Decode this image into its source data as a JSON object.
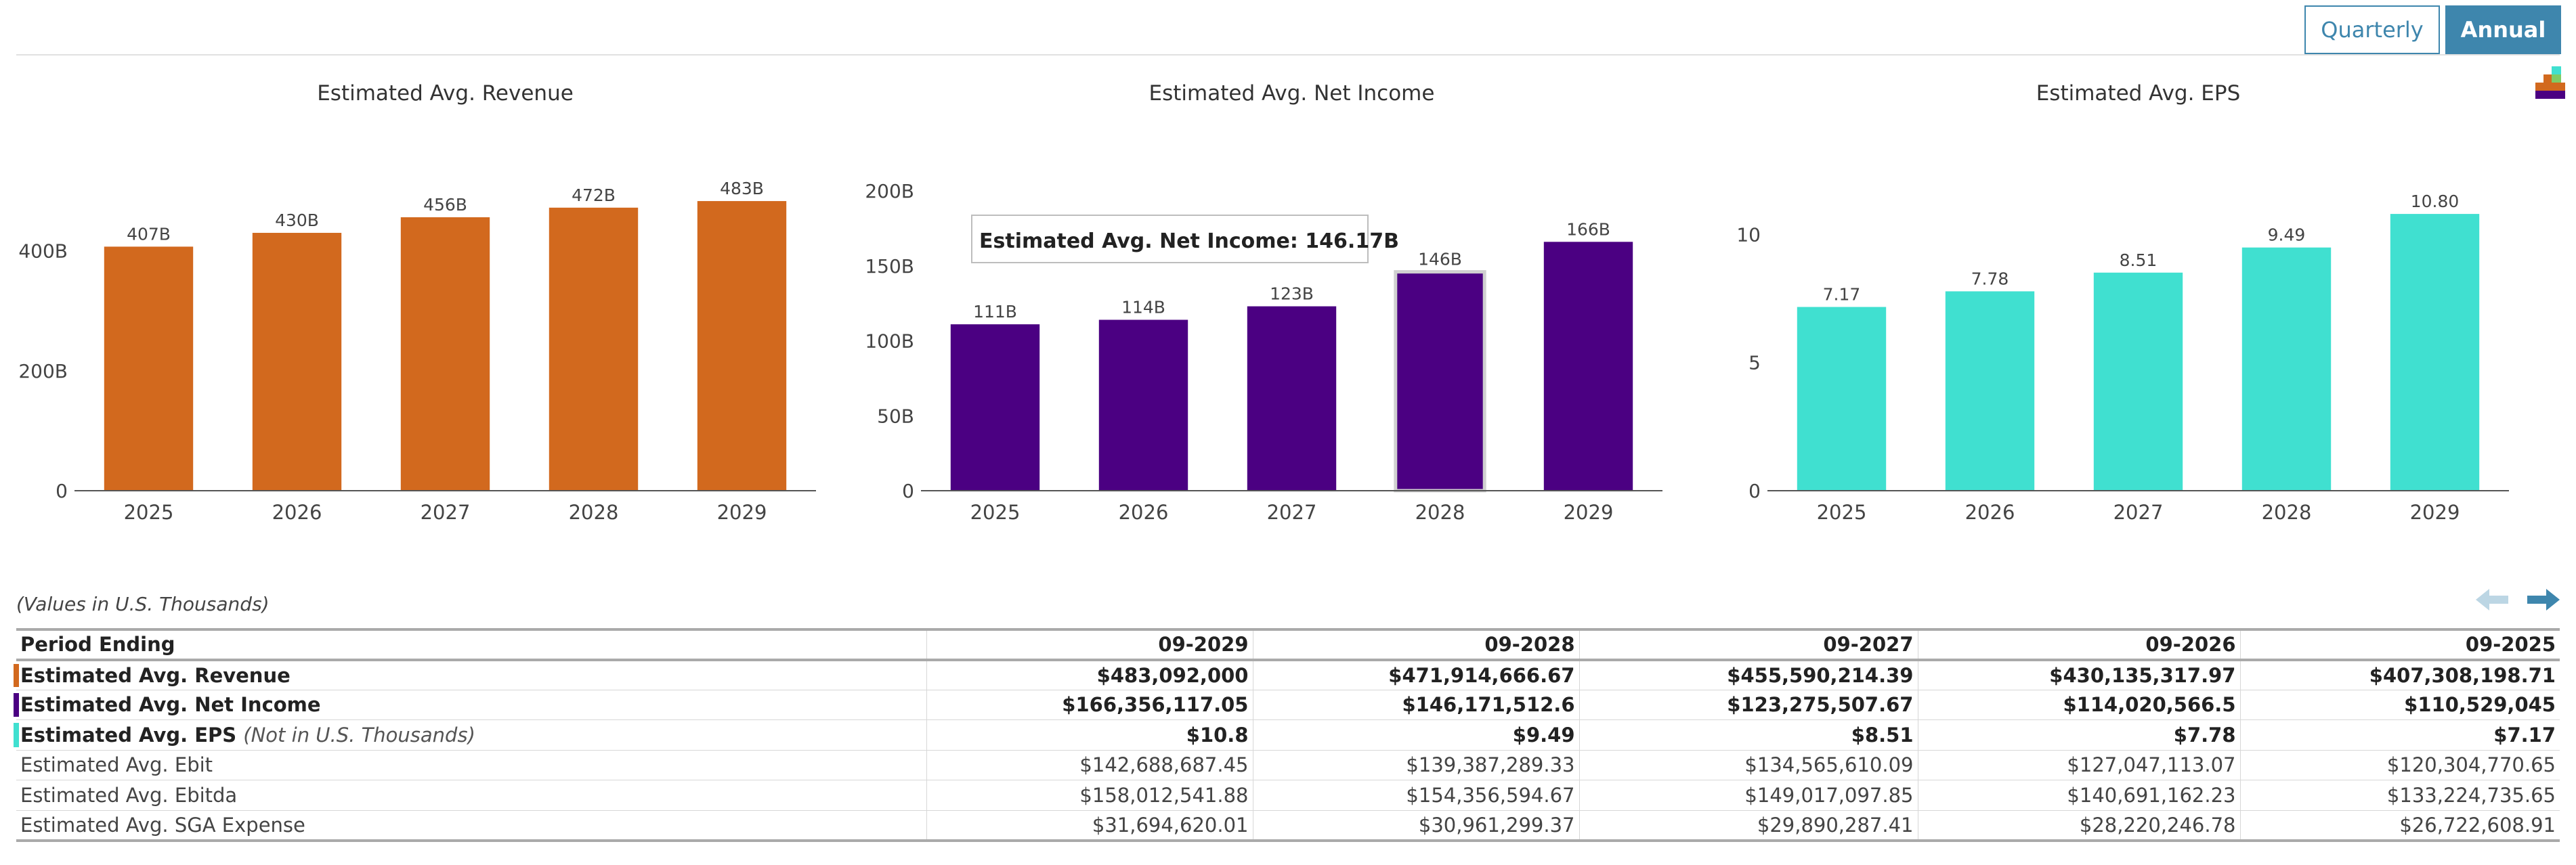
{
  "toggle": {
    "quarterly": "Quarterly",
    "annual": "Annual",
    "active": "annual"
  },
  "colors": {
    "revenue": "#d2691e",
    "net_income": "#4b0082",
    "eps": "#40e0d0",
    "accent": "#3e86ad"
  },
  "icons": {
    "settings": "stacked-bars-icon",
    "prev": "arrow-left-icon",
    "next": "arrow-right-icon"
  },
  "chart_data": [
    {
      "type": "bar",
      "title": "Estimated Avg. Revenue",
      "categories": [
        "2025",
        "2026",
        "2027",
        "2028",
        "2029"
      ],
      "values": [
        407,
        430,
        456,
        472,
        483
      ],
      "value_labels": [
        "407B",
        "430B",
        "456B",
        "472B",
        "483B"
      ],
      "yticks": [
        0,
        200,
        400
      ],
      "ytick_labels": [
        "0",
        "200B",
        "400B"
      ],
      "ylim": [
        0,
        500
      ],
      "color": "#d2691e"
    },
    {
      "type": "bar",
      "title": "Estimated Avg. Net Income",
      "categories": [
        "2025",
        "2026",
        "2027",
        "2028",
        "2029"
      ],
      "values": [
        111,
        114,
        123,
        146,
        166
      ],
      "value_labels": [
        "111B",
        "114B",
        "123B",
        "146B",
        "166B"
      ],
      "yticks": [
        0,
        50,
        100,
        150,
        200
      ],
      "ytick_labels": [
        "0",
        "50B",
        "100B",
        "150B",
        "200B"
      ],
      "ylim": [
        0,
        200
      ],
      "color": "#4b0082",
      "tooltip": {
        "label": "Estimated Avg. Net Income: 146.17B",
        "index": 3
      }
    },
    {
      "type": "bar",
      "title": "Estimated Avg. EPS",
      "categories": [
        "2025",
        "2026",
        "2027",
        "2028",
        "2029"
      ],
      "values": [
        7.17,
        7.78,
        8.51,
        9.49,
        10.8
      ],
      "value_labels": [
        "7.17",
        "7.78",
        "8.51",
        "9.49",
        "10.80"
      ],
      "yticks": [
        0,
        5,
        10
      ],
      "ytick_labels": [
        "0",
        "5",
        "10"
      ],
      "ylim": [
        0,
        11.7
      ],
      "color": "#40e0d0"
    }
  ],
  "table": {
    "note": "(Values in U.S. Thousands)",
    "header": [
      "Period Ending",
      "09-2029",
      "09-2028",
      "09-2027",
      "09-2026",
      "09-2025"
    ],
    "rows": [
      {
        "label": "Estimated Avg. Revenue",
        "bold": true,
        "swatch": "#d2691e",
        "values": [
          "$483,092,000",
          "$471,914,666.67",
          "$455,590,214.39",
          "$430,135,317.97",
          "$407,308,198.71"
        ]
      },
      {
        "label": "Estimated Avg. Net Income",
        "bold": true,
        "swatch": "#4b0082",
        "values": [
          "$166,356,117.05",
          "$146,171,512.6",
          "$123,275,507.67",
          "$114,020,566.5",
          "$110,529,045"
        ]
      },
      {
        "label": "Estimated Avg. EPS",
        "note": "(Not in U.S. Thousands)",
        "bold": true,
        "swatch": "#40e0d0",
        "values": [
          "$10.8",
          "$9.49",
          "$8.51",
          "$7.78",
          "$7.17"
        ]
      },
      {
        "label": "Estimated Avg. Ebit",
        "bold": false,
        "values": [
          "$142,688,687.45",
          "$139,387,289.33",
          "$134,565,610.09",
          "$127,047,113.07",
          "$120,304,770.65"
        ]
      },
      {
        "label": "Estimated Avg. Ebitda",
        "bold": false,
        "values": [
          "$158,012,541.88",
          "$154,356,594.67",
          "$149,017,097.85",
          "$140,691,162.23",
          "$133,224,735.65"
        ]
      },
      {
        "label": "Estimated Avg. SGA Expense",
        "bold": false,
        "values": [
          "$31,694,620.01",
          "$30,961,299.37",
          "$29,890,287.41",
          "$28,220,246.78",
          "$26,722,608.91"
        ]
      }
    ]
  }
}
